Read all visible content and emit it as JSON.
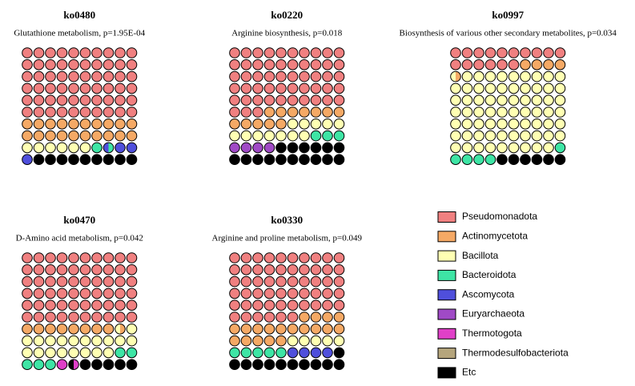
{
  "chart_data": {
    "type": "waffle",
    "categories": [
      "Pseudomonadota",
      "Actinomycetota",
      "Bacillota",
      "Bacteroidota",
      "Ascomycota",
      "Euryarchaeota",
      "Thermotogota",
      "Thermodesulfobacteriota",
      "Etc"
    ],
    "colors": [
      "#f08080",
      "#f5a965",
      "#ffffb3",
      "#3ee5a5",
      "#4f4fdc",
      "#a04ac6",
      "#e040c8",
      "#b5a57c",
      "#000000"
    ],
    "panels": [
      {
        "title": "ko0480",
        "subtitle": "Glutathione metabolism, p=1.95E-04",
        "values": [
          60,
          20,
          6,
          1.5,
          3.5,
          0,
          0,
          0,
          9
        ]
      },
      {
        "title": "ko0220",
        "subtitle": "Arginine biosynthesis, p=0.018",
        "values": [
          53,
          12,
          12,
          3,
          0,
          4,
          0,
          0,
          16
        ]
      },
      {
        "title": "ko0997",
        "subtitle": "Biosynthesis of various other secondary metabolites, p=0.034",
        "values": [
          16,
          4.5,
          68.5,
          5,
          0,
          0,
          0,
          0,
          6
        ]
      },
      {
        "title": "ko0470",
        "subtitle": "D-Amino acid metabolism, p=0.042",
        "values": [
          60,
          8.5,
          19.5,
          5,
          0,
          0,
          1.5,
          0,
          5.5
        ]
      },
      {
        "title": "ko0330",
        "subtitle": "Arginine and proline metabolism, p=0.049",
        "values": [
          56,
          19,
          5,
          5,
          4,
          0,
          0,
          0,
          11
        ]
      }
    ]
  }
}
